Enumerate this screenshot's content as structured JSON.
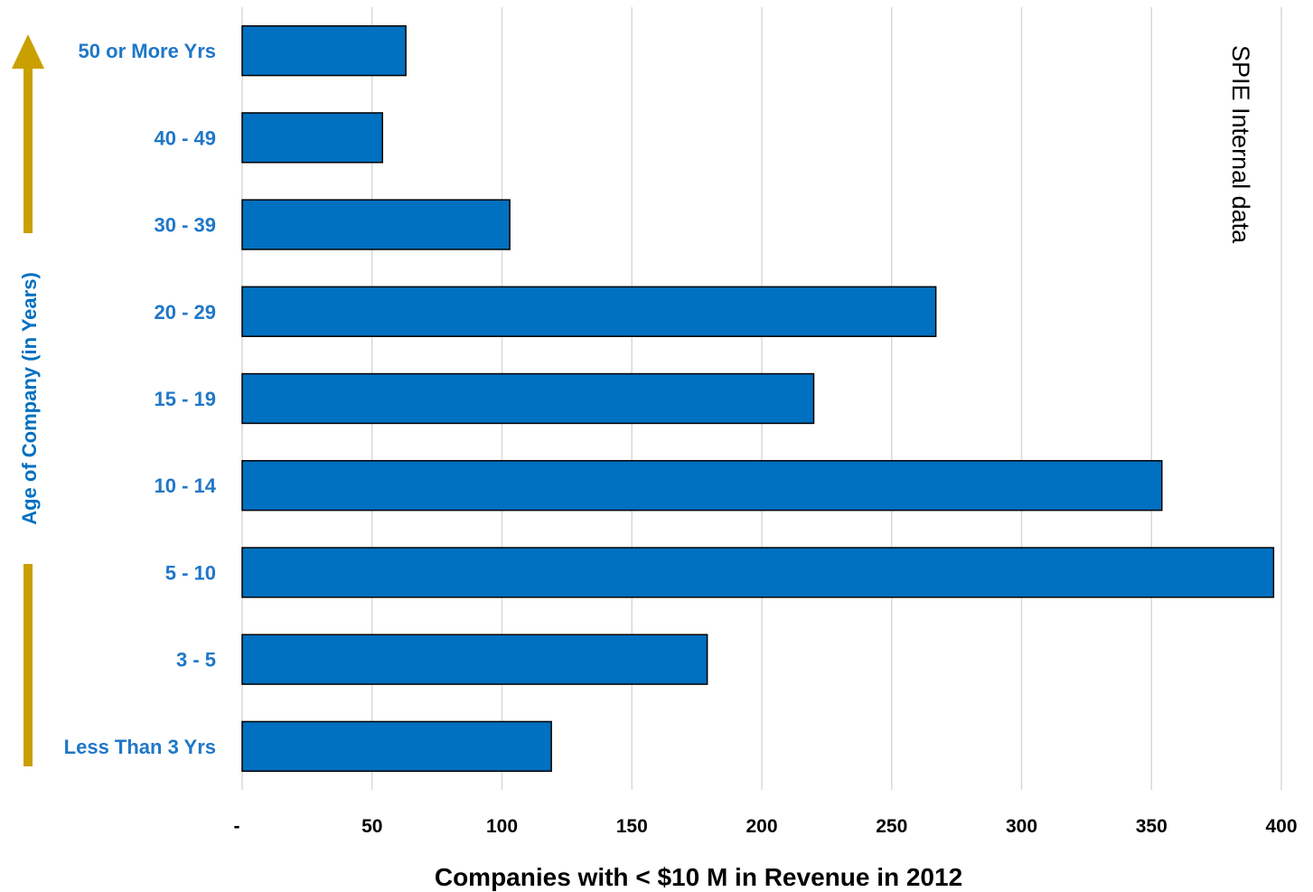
{
  "chart_data": {
    "type": "bar",
    "orientation": "horizontal",
    "categories": [
      "Less Than 3 Yrs",
      "3 - 5",
      "5 - 10",
      "10 - 14",
      "15 - 19",
      "20 - 29",
      "30 - 39",
      "40 - 49",
      "50 or More Yrs"
    ],
    "values": [
      119,
      179,
      397,
      354,
      220,
      267,
      103,
      54,
      63
    ],
    "xlabel": "Companies with < $10 M in Revenue in 2012",
    "ylabel": "Age of Company (in Years)",
    "annotation": "SPIE Internal data",
    "xlim": [
      0,
      400
    ],
    "xticks": [
      0,
      50,
      100,
      150,
      200,
      250,
      300,
      350,
      400
    ],
    "xtick_labels": [
      "-",
      "50",
      "100",
      "150",
      "200",
      "250",
      "300",
      "350",
      "400"
    ],
    "grid": "vertical",
    "colors": {
      "bar": "#0070C0",
      "bar_outline": "#000000",
      "category_label": "#1F77C7",
      "axis_label": "#0070C0",
      "arrow": "#C9A000",
      "grid": "#D9D9D9"
    }
  }
}
